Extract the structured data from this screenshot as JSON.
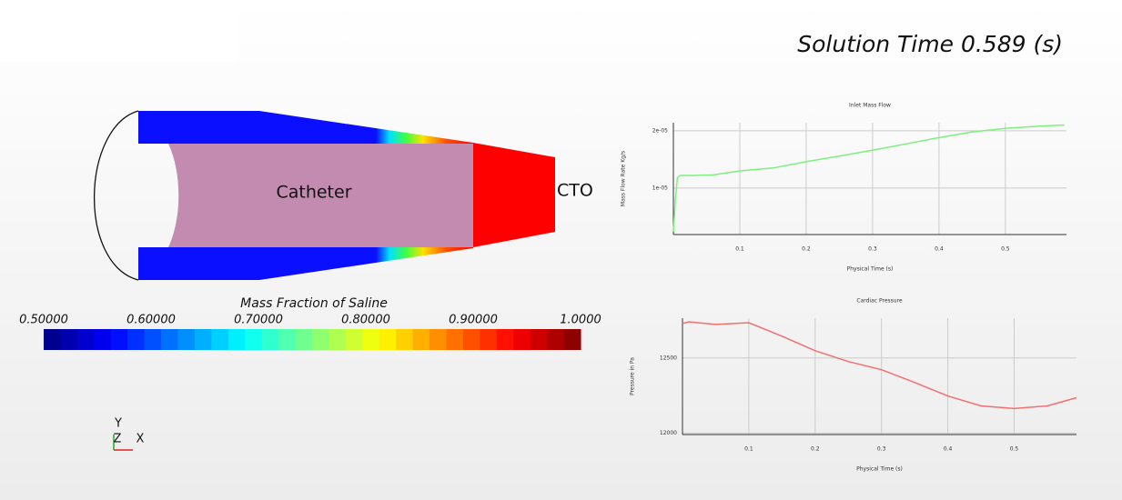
{
  "header": {
    "title": "Solution Time 0.589 (s)"
  },
  "scene": {
    "labels": [
      "Catheter",
      "CTO"
    ]
  },
  "colorbar": {
    "title": "Mass Fraction of Saline",
    "lim": [
      0.5,
      1.0
    ],
    "ticks": [
      {
        "value": 0.5,
        "label": "0.50000"
      },
      {
        "value": 0.6,
        "label": "0.60000"
      },
      {
        "value": 0.7,
        "label": "0.70000"
      },
      {
        "value": 0.8,
        "label": "0.80000"
      },
      {
        "value": 0.9,
        "label": "0.90000"
      },
      {
        "value": 1.0,
        "label": "1.0000"
      }
    ]
  },
  "axes": {
    "y": "Y",
    "z": "Z",
    "x": "X"
  },
  "chart_data": [
    {
      "type": "line",
      "title": "Inlet Mass Flow",
      "x_label": "Physical Time (s)",
      "y_label": "Mass Flow Rate Kg/s",
      "x": [
        0,
        0.003,
        0.006,
        0.01,
        0.03,
        0.06,
        0.1,
        0.15,
        0.2,
        0.25,
        0.3,
        0.35,
        0.4,
        0.45,
        0.5,
        0.55,
        0.589
      ],
      "series": [
        {
          "color": "#7ef07e",
          "values": [
            2.4e-06,
            8e-06,
            1.18e-05,
            1.22e-05,
            1.22e-05,
            1.23e-05,
            1.3e-05,
            1.35e-05,
            1.46e-05,
            1.56e-05,
            1.66e-05,
            1.77e-05,
            1.88e-05,
            1.98e-05,
            2.04e-05,
            2.08e-05,
            2.1e-05
          ]
        }
      ],
      "xlim": [
        0,
        0.592
      ],
      "xticks": [
        0.1,
        0.2,
        0.3,
        0.4,
        0.5
      ],
      "ylim": [
        1.9e-06,
        2.14e-05
      ],
      "yticks": [
        {
          "value": 1e-05,
          "label": "1e-05"
        },
        {
          "value": 2e-05,
          "label": "2e-05"
        }
      ],
      "grid": true
    },
    {
      "type": "line",
      "title": "Cardiac Pressure",
      "x_label": "Physical Time (s)",
      "y_label": "Pressure in Pa",
      "x": [
        0,
        0.01,
        0.05,
        0.1,
        0.15,
        0.2,
        0.25,
        0.3,
        0.35,
        0.4,
        0.45,
        0.5,
        0.55,
        0.594
      ],
      "series": [
        {
          "color": "#f07070",
          "values": [
            12729,
            12741,
            12723,
            12735,
            12645,
            12548,
            12476,
            12422,
            12337,
            12247,
            12181,
            12163,
            12181,
            12235
          ]
        }
      ],
      "xlim": [
        0,
        0.594
      ],
      "xticks": [
        0.1,
        0.2,
        0.3,
        0.4,
        0.5
      ],
      "ylim": [
        11990,
        12765
      ],
      "yticks": [
        12000,
        12500
      ],
      "grid": true
    }
  ]
}
